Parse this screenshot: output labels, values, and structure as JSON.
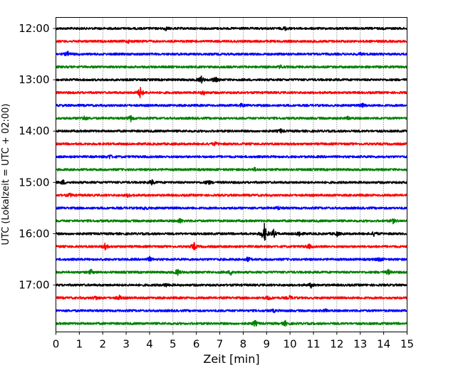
{
  "chart_data": {
    "type": "line",
    "title": "",
    "xlabel": "Zeit  [min]",
    "ylabel": "UTC (Lokalzeit = UTC + 02:00)",
    "xlim": [
      0,
      15
    ],
    "x_ticks": [
      "0",
      "1",
      "2",
      "3",
      "4",
      "5",
      "6",
      "7",
      "8",
      "9",
      "10",
      "11",
      "12",
      "13",
      "14",
      "15"
    ],
    "y_tick_labels": [
      "12:00",
      "13:00",
      "14:00",
      "15:00",
      "16:00",
      "17:00"
    ],
    "grid": "vertical dotted",
    "trace_interval_minutes": 15,
    "color_cycle": [
      "#000000",
      "#ff0000",
      "#0000ff",
      "#008000"
    ],
    "traces": [
      {
        "time": "12:00",
        "color": "black",
        "events": [
          {
            "t": 4.7,
            "a": 2
          },
          {
            "t": 9.8,
            "a": 2
          }
        ]
      },
      {
        "time": "12:15",
        "color": "red",
        "events": [
          {
            "t": 3.1,
            "a": 1.5
          }
        ]
      },
      {
        "time": "12:30",
        "color": "blue",
        "events": [
          {
            "t": 0.5,
            "a": 3
          },
          {
            "t": 13.0,
            "a": 1.5
          }
        ]
      },
      {
        "time": "12:45",
        "color": "green",
        "events": [
          {
            "t": 9.6,
            "a": 2
          }
        ]
      },
      {
        "time": "13:00",
        "color": "black",
        "events": [
          {
            "t": 6.2,
            "a": 5
          },
          {
            "t": 6.8,
            "a": 4
          }
        ]
      },
      {
        "time": "13:15",
        "color": "red",
        "events": [
          {
            "t": 3.6,
            "a": 8
          },
          {
            "t": 6.3,
            "a": 3
          }
        ]
      },
      {
        "time": "13:30",
        "color": "blue",
        "events": [
          {
            "t": 7.9,
            "a": 2
          },
          {
            "t": 13.1,
            "a": 2
          }
        ]
      },
      {
        "time": "13:45",
        "color": "green",
        "events": [
          {
            "t": 1.2,
            "a": 3
          },
          {
            "t": 3.2,
            "a": 4
          },
          {
            "t": 12.5,
            "a": 2
          }
        ]
      },
      {
        "time": "14:00",
        "color": "black",
        "events": [
          {
            "t": 9.6,
            "a": 2.5
          }
        ]
      },
      {
        "time": "14:15",
        "color": "red",
        "events": [
          {
            "t": 6.8,
            "a": 2
          }
        ]
      },
      {
        "time": "14:30",
        "color": "blue",
        "events": [
          {
            "t": 2.3,
            "a": 2.5
          }
        ]
      },
      {
        "time": "14:45",
        "color": "green",
        "events": [
          {
            "t": 8.5,
            "a": 2
          }
        ]
      },
      {
        "time": "15:00",
        "color": "black",
        "events": [
          {
            "t": 0.3,
            "a": 3
          },
          {
            "t": 4.1,
            "a": 3
          },
          {
            "t": 6.5,
            "a": 3
          }
        ]
      },
      {
        "time": "15:15",
        "color": "red",
        "events": [
          {
            "t": 0.6,
            "a": 2
          },
          {
            "t": 3.1,
            "a": 2
          }
        ]
      },
      {
        "time": "15:30",
        "color": "blue",
        "events": [
          {
            "t": 3.8,
            "a": 2
          },
          {
            "t": 9.5,
            "a": 2
          }
        ]
      },
      {
        "time": "15:45",
        "color": "green",
        "events": [
          {
            "t": 5.3,
            "a": 3
          },
          {
            "t": 14.4,
            "a": 2.5
          }
        ]
      },
      {
        "time": "16:00",
        "color": "black",
        "events": [
          {
            "t": 8.9,
            "a": 14
          },
          {
            "t": 9.3,
            "a": 5
          },
          {
            "t": 10.4,
            "a": 4
          },
          {
            "t": 12.0,
            "a": 3
          },
          {
            "t": 13.6,
            "a": 3
          }
        ]
      },
      {
        "time": "16:15",
        "color": "red",
        "events": [
          {
            "t": 2.1,
            "a": 4
          },
          {
            "t": 5.9,
            "a": 5
          },
          {
            "t": 10.8,
            "a": 3
          }
        ]
      },
      {
        "time": "16:30",
        "color": "blue",
        "events": [
          {
            "t": 4.0,
            "a": 3
          },
          {
            "t": 8.2,
            "a": 3
          },
          {
            "t": 13.8,
            "a": 3
          }
        ]
      },
      {
        "time": "16:45",
        "color": "green",
        "events": [
          {
            "t": 1.5,
            "a": 3
          },
          {
            "t": 5.2,
            "a": 4
          },
          {
            "t": 7.5,
            "a": 4
          },
          {
            "t": 14.2,
            "a": 3
          }
        ]
      },
      {
        "time": "17:00",
        "color": "black",
        "events": [
          {
            "t": 4.7,
            "a": 2
          },
          {
            "t": 10.9,
            "a": 3
          }
        ]
      },
      {
        "time": "17:15",
        "color": "red",
        "events": [
          {
            "t": 1.7,
            "a": 2.5
          },
          {
            "t": 2.7,
            "a": 3
          },
          {
            "t": 9.1,
            "a": 2.5
          },
          {
            "t": 10.0,
            "a": 2.5
          }
        ]
      },
      {
        "time": "17:30",
        "color": "blue",
        "events": [
          {
            "t": 9.3,
            "a": 1.5
          },
          {
            "t": 11.5,
            "a": 1.5
          }
        ]
      },
      {
        "time": "17:45",
        "color": "green",
        "events": [
          {
            "t": 8.5,
            "a": 4
          },
          {
            "t": 9.8,
            "a": 3
          }
        ]
      }
    ]
  }
}
